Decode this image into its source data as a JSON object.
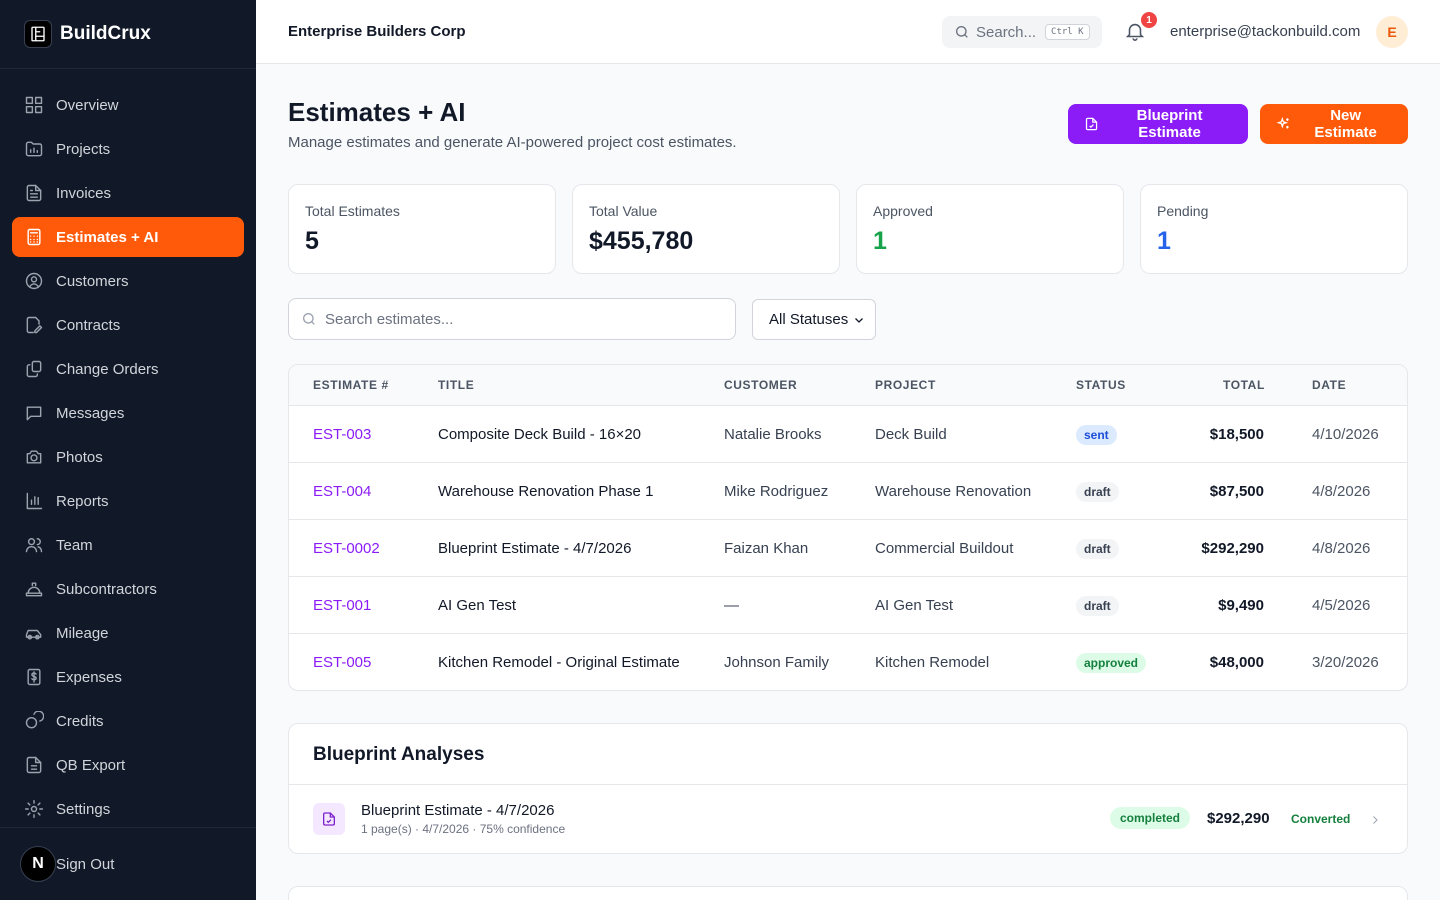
{
  "brand": {
    "name": "BuildCrux"
  },
  "sidebar": {
    "items": [
      {
        "label": "Overview",
        "icon": "overview-icon"
      },
      {
        "label": "Projects",
        "icon": "folder-icon"
      },
      {
        "label": "Invoices",
        "icon": "invoice-icon"
      },
      {
        "label": "Estimates + AI",
        "icon": "calculator-icon",
        "active": true
      },
      {
        "label": "Customers",
        "icon": "user-circle-icon"
      },
      {
        "label": "Contracts",
        "icon": "contract-icon"
      },
      {
        "label": "Change Orders",
        "icon": "change-orders-icon"
      },
      {
        "label": "Messages",
        "icon": "message-icon"
      },
      {
        "label": "Photos",
        "icon": "camera-icon"
      },
      {
        "label": "Reports",
        "icon": "bar-chart-icon"
      },
      {
        "label": "Team",
        "icon": "team-icon"
      },
      {
        "label": "Subcontractors",
        "icon": "hard-hat-icon"
      },
      {
        "label": "Mileage",
        "icon": "car-icon"
      },
      {
        "label": "Expenses",
        "icon": "dollar-receipt-icon"
      },
      {
        "label": "Credits",
        "icon": "coins-icon"
      },
      {
        "label": "QB Export",
        "icon": "export-doc-icon"
      },
      {
        "label": "Settings",
        "icon": "gear-icon"
      }
    ],
    "sign_out": "Sign Out",
    "badge_letter": "N"
  },
  "topbar": {
    "company": "Enterprise Builders Corp",
    "search_placeholder": "Search...",
    "search_shortcut": "Ctrl K",
    "notifications": "1",
    "email": "enterprise@tackonbuild.com",
    "avatar_initial": "E"
  },
  "page": {
    "title": "Estimates + AI",
    "subtitle": "Manage estimates and generate AI-powered project cost estimates.",
    "blueprint_button": "Blueprint Estimate",
    "new_button": "New Estimate"
  },
  "stats": [
    {
      "label": "Total Estimates",
      "value": "5",
      "color": "#111827"
    },
    {
      "label": "Total Value",
      "value": "$455,780",
      "color": "#111827"
    },
    {
      "label": "Approved",
      "value": "1",
      "color": "#16a34a"
    },
    {
      "label": "Pending",
      "value": "1",
      "color": "#2563eb"
    }
  ],
  "filters": {
    "search_placeholder": "Search estimates...",
    "status_value": "All Statuses"
  },
  "table": {
    "headers": [
      "ESTIMATE #",
      "TITLE",
      "CUSTOMER",
      "PROJECT",
      "STATUS",
      "TOTAL",
      "DATE"
    ],
    "rows": [
      {
        "id": "EST-003",
        "title": "Composite Deck Build - 16×20",
        "customer": "Natalie Brooks",
        "project": "Deck Build",
        "status": "sent",
        "total": "$18,500",
        "date": "4/10/2026"
      },
      {
        "id": "EST-004",
        "title": "Warehouse Renovation Phase 1",
        "customer": "Mike Rodriguez",
        "project": "Warehouse Renovation",
        "status": "draft",
        "total": "$87,500",
        "date": "4/8/2026"
      },
      {
        "id": "EST-0002",
        "title": "Blueprint Estimate - 4/7/2026",
        "customer": "Faizan Khan",
        "project": "Commercial Buildout",
        "status": "draft",
        "total": "$292,290",
        "date": "4/8/2026"
      },
      {
        "id": "EST-001",
        "title": "AI Gen Test",
        "customer": "—",
        "project": "AI Gen Test",
        "status": "draft",
        "total": "$9,490",
        "date": "4/5/2026"
      },
      {
        "id": "EST-005",
        "title": "Kitchen Remodel - Original Estimate",
        "customer": "Johnson Family",
        "project": "Kitchen Remodel",
        "status": "approved",
        "total": "$48,000",
        "date": "3/20/2026"
      }
    ]
  },
  "blueprints": {
    "title": "Blueprint Analyses",
    "items": [
      {
        "name": "Blueprint Estimate - 4/7/2026",
        "meta": "1 page(s) · 4/7/2026 · 75% confidence",
        "status": "completed",
        "amount": "$292,290",
        "state": "Converted"
      }
    ]
  },
  "colors": {
    "accent": "#ff5a0a",
    "purple": "#8b1cf7",
    "sidebar_bg": "#111827"
  }
}
